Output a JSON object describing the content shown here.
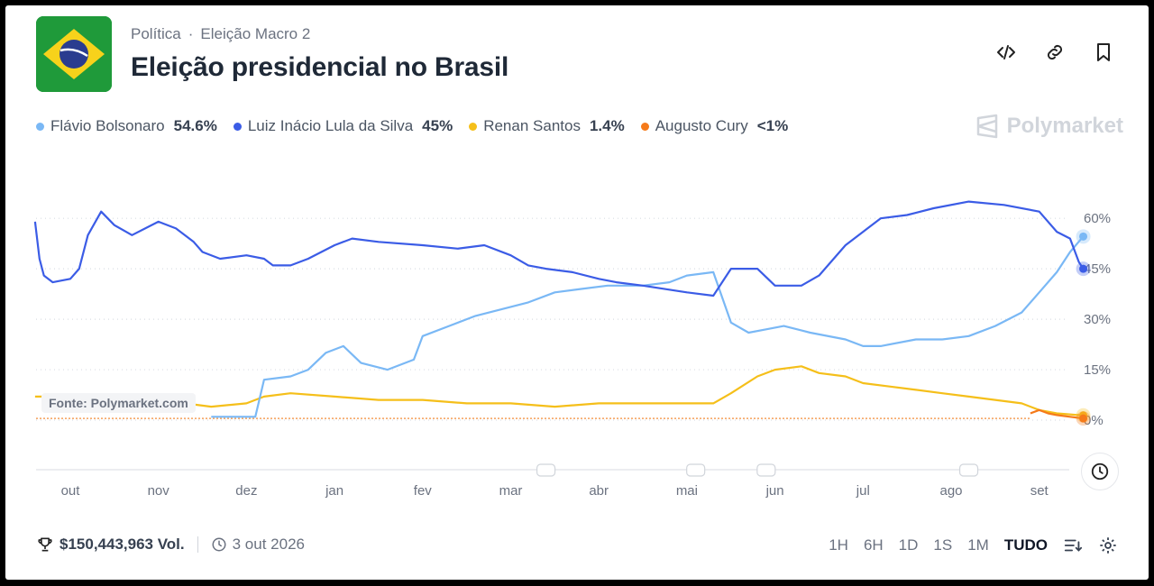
{
  "header": {
    "breadcrumb": [
      "Política",
      "Eleição Macro 2"
    ],
    "breadcrumb_sep": "·",
    "title": "Eleição presidencial no Brasil"
  },
  "tools": [
    "code-icon",
    "link-icon",
    "bookmark-icon"
  ],
  "legend": [
    {
      "name": "Flávio Bolsonaro",
      "value": "54.6%",
      "color": "#7ab8f5"
    },
    {
      "name": "Luiz Inácio Lula da Silva",
      "value": "45%",
      "color": "#3b5ce6"
    },
    {
      "name": "Renan Santos",
      "value": "1.4%",
      "color": "#f5bf1a"
    },
    {
      "name": "Augusto Cury",
      "value": "<1%",
      "color": "#f57a1a"
    }
  ],
  "brand": "Polymarket",
  "source": "Fonte: Polymarket.com",
  "footer": {
    "volume": "$150,443,963 Vol.",
    "end_date": "3 out 2026"
  },
  "ranges": [
    "1H",
    "6H",
    "1D",
    "1S",
    "1M",
    "TUDO"
  ],
  "active_range": "TUDO",
  "chart_data": {
    "type": "line",
    "title": "Eleição presidencial no Brasil",
    "x_ticks": [
      "out",
      "nov",
      "dez",
      "jan",
      "fev",
      "mar",
      "abr",
      "mai",
      "jun",
      "jul",
      "ago",
      "set"
    ],
    "y_ticks": [
      "0%",
      "15%",
      "30%",
      "45%",
      "60%"
    ],
    "ylim": [
      0,
      70
    ],
    "x_range": [
      0,
      11.5
    ],
    "grid": true,
    "series": [
      {
        "name": "Luiz Inácio Lula da Silva",
        "color": "#3b5ce6",
        "points": [
          [
            -0.4,
            59
          ],
          [
            -0.35,
            48
          ],
          [
            -0.3,
            43
          ],
          [
            -0.2,
            41
          ],
          [
            0,
            42
          ],
          [
            0.1,
            45
          ],
          [
            0.2,
            55
          ],
          [
            0.35,
            62
          ],
          [
            0.5,
            58
          ],
          [
            0.7,
            55
          ],
          [
            1.0,
            59
          ],
          [
            1.2,
            57
          ],
          [
            1.4,
            53
          ],
          [
            1.5,
            50
          ],
          [
            1.7,
            48
          ],
          [
            2.0,
            49
          ],
          [
            2.2,
            48
          ],
          [
            2.3,
            46
          ],
          [
            2.5,
            46
          ],
          [
            2.7,
            48
          ],
          [
            3.0,
            52
          ],
          [
            3.2,
            54
          ],
          [
            3.5,
            53
          ],
          [
            4.0,
            52
          ],
          [
            4.4,
            51
          ],
          [
            4.7,
            52
          ],
          [
            5.0,
            49
          ],
          [
            5.2,
            46
          ],
          [
            5.4,
            45
          ],
          [
            5.7,
            44
          ],
          [
            6.0,
            42
          ],
          [
            6.2,
            41
          ],
          [
            6.5,
            40
          ],
          [
            7.0,
            38
          ],
          [
            7.3,
            37
          ],
          [
            7.5,
            45
          ],
          [
            7.8,
            45
          ],
          [
            8.0,
            40
          ],
          [
            8.3,
            40
          ],
          [
            8.5,
            43
          ],
          [
            8.8,
            52
          ],
          [
            9.0,
            56
          ],
          [
            9.2,
            60
          ],
          [
            9.5,
            61
          ],
          [
            9.8,
            63
          ],
          [
            10.2,
            65
          ],
          [
            10.6,
            64
          ],
          [
            11.0,
            62
          ],
          [
            11.2,
            56
          ],
          [
            11.35,
            54
          ],
          [
            11.45,
            47
          ],
          [
            11.5,
            45
          ]
        ]
      },
      {
        "name": "Flávio Bolsonaro",
        "color": "#7ab8f5",
        "points": [
          [
            1.6,
            1
          ],
          [
            2.0,
            1
          ],
          [
            2.1,
            1
          ],
          [
            2.2,
            12
          ],
          [
            2.5,
            13
          ],
          [
            2.7,
            15
          ],
          [
            2.9,
            20
          ],
          [
            3.1,
            22
          ],
          [
            3.3,
            17
          ],
          [
            3.6,
            15
          ],
          [
            3.9,
            18
          ],
          [
            4.0,
            25
          ],
          [
            4.3,
            28
          ],
          [
            4.6,
            31
          ],
          [
            4.9,
            33
          ],
          [
            5.2,
            35
          ],
          [
            5.5,
            38
          ],
          [
            5.8,
            39
          ],
          [
            6.1,
            40
          ],
          [
            6.5,
            40
          ],
          [
            6.8,
            41
          ],
          [
            7.0,
            43
          ],
          [
            7.3,
            44
          ],
          [
            7.5,
            29
          ],
          [
            7.7,
            26
          ],
          [
            7.9,
            27
          ],
          [
            8.1,
            28
          ],
          [
            8.4,
            26
          ],
          [
            8.8,
            24
          ],
          [
            9.0,
            22
          ],
          [
            9.2,
            22
          ],
          [
            9.6,
            24
          ],
          [
            9.9,
            24
          ],
          [
            10.2,
            25
          ],
          [
            10.5,
            28
          ],
          [
            10.8,
            32
          ],
          [
            11.0,
            38
          ],
          [
            11.2,
            44
          ],
          [
            11.35,
            50
          ],
          [
            11.5,
            54.6
          ]
        ]
      },
      {
        "name": "Renan Santos",
        "color": "#f5bf1a",
        "points": [
          [
            -0.4,
            7
          ],
          [
            0,
            7
          ],
          [
            0.5,
            7
          ],
          [
            1.1,
            7
          ],
          [
            1.3,
            5
          ],
          [
            1.6,
            4
          ],
          [
            2.0,
            5
          ],
          [
            2.2,
            7
          ],
          [
            2.5,
            8
          ],
          [
            3.0,
            7
          ],
          [
            3.5,
            6
          ],
          [
            4.0,
            6
          ],
          [
            4.5,
            5
          ],
          [
            5.0,
            5
          ],
          [
            5.5,
            4
          ],
          [
            6.0,
            5
          ],
          [
            6.5,
            5
          ],
          [
            7.0,
            5
          ],
          [
            7.3,
            5
          ],
          [
            7.5,
            8
          ],
          [
            7.8,
            13
          ],
          [
            8.0,
            15
          ],
          [
            8.3,
            16
          ],
          [
            8.5,
            14
          ],
          [
            8.8,
            13
          ],
          [
            9.0,
            11
          ],
          [
            9.3,
            10
          ],
          [
            9.6,
            9
          ],
          [
            9.9,
            8
          ],
          [
            10.2,
            7
          ],
          [
            10.5,
            6
          ],
          [
            10.8,
            5
          ],
          [
            11.0,
            3
          ],
          [
            11.2,
            2
          ],
          [
            11.5,
            1.4
          ]
        ]
      },
      {
        "name": "Augusto Cury",
        "color": "#f57a1a",
        "points": [
          [
            10.9,
            2
          ],
          [
            11.0,
            3
          ],
          [
            11.1,
            2
          ],
          [
            11.2,
            1.5
          ],
          [
            11.35,
            1
          ],
          [
            11.5,
            0.5
          ]
        ]
      }
    ]
  }
}
